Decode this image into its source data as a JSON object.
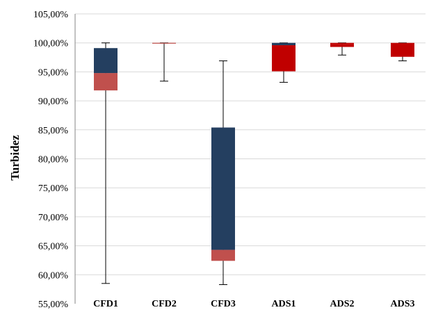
{
  "chart_data": {
    "type": "box",
    "ylabel": "Turbidez",
    "ylim": [
      55,
      105
    ],
    "y_ticks": [
      "55,00%",
      "60,00%",
      "65,00%",
      "70,00%",
      "75,00%",
      "80,00%",
      "85,00%",
      "90,00%",
      "95,00%",
      "100,00%",
      "105,00%"
    ],
    "grid": true,
    "categories": [
      "CFD1",
      "CFD2",
      "CFD3",
      "ADS1",
      "ADS2",
      "ADS3"
    ],
    "boxes": [
      {
        "label": "CFD1",
        "min": 58.5,
        "q1": 91.8,
        "median": 94.8,
        "q3": 99.1,
        "max": 100.0,
        "lower_color": "#c0504d",
        "upper_color": "#243f60"
      },
      {
        "label": "CFD2",
        "min": 93.4,
        "q1": 99.9,
        "median": 100.0,
        "q3": 100.0,
        "max": 100.0,
        "lower_color": "#c0504d",
        "upper_color": "#c0504d"
      },
      {
        "label": "CFD3",
        "min": 58.3,
        "q1": 62.4,
        "median": 64.3,
        "q3": 85.4,
        "max": 96.9,
        "lower_color": "#c0504d",
        "upper_color": "#243f60"
      },
      {
        "label": "ADS1",
        "min": 93.2,
        "q1": 95.1,
        "median": 99.6,
        "q3": 100.0,
        "max": 100.0,
        "lower_color": "#c00000",
        "upper_color": "#243f60"
      },
      {
        "label": "ADS2",
        "min": 97.9,
        "q1": 99.3,
        "median": 99.8,
        "q3": 100.0,
        "max": 100.0,
        "lower_color": "#c00000",
        "upper_color": "#c00000"
      },
      {
        "label": "ADS3",
        "min": 96.9,
        "q1": 97.6,
        "median": 99.9,
        "q3": 100.0,
        "max": 100.0,
        "lower_color": "#c00000",
        "upper_color": "#c00000"
      }
    ]
  }
}
